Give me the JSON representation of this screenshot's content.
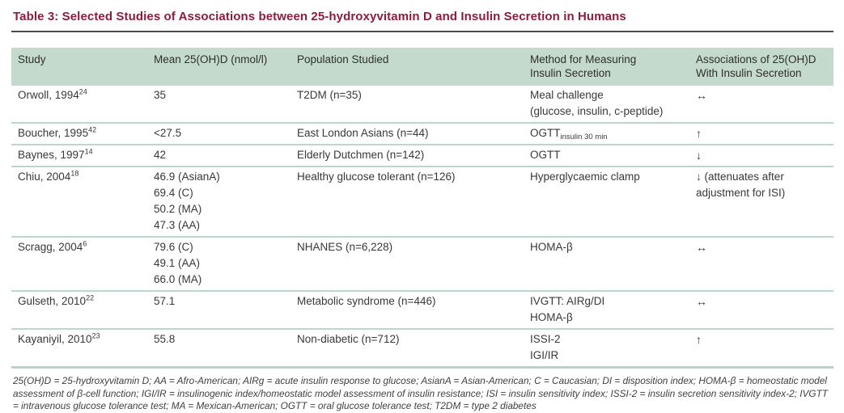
{
  "title": "Table 3: Selected Studies of Associations between 25-hydroxyvitamin D and Insulin Secretion in Humans",
  "colors": {
    "title_text": "#8e1c3e",
    "header_background": "#c4dacc",
    "dark_rule": "#4c4c4c",
    "light_rule": "#bcd7c9",
    "body_text": "#383838"
  },
  "columns": {
    "study": "Study",
    "mean": "Mean 25(OH)D (nmol/l)",
    "population": "Population Studied",
    "method_line1": "Method for Measuring",
    "method_line2": "Insulin Secretion",
    "assoc_line1": "Associations of 25(OH)D",
    "assoc_line2": "With Insulin Secretion"
  },
  "rows": [
    {
      "study": "Orwoll, 1994",
      "ref": "24",
      "mean": [
        "35"
      ],
      "population": "T2DM (n=35)",
      "method": [
        "Meal challenge",
        "(glucose, insulin, c-peptide)"
      ],
      "assoc": "↔"
    },
    {
      "study": "Boucher, 1995",
      "ref": "42",
      "mean": [
        "<27.5"
      ],
      "population": "East London Asians (n=44)",
      "method_main": "OGTT",
      "method_sub": "insulin 30 min",
      "assoc": "↑"
    },
    {
      "study": "Baynes, 1997",
      "ref": "14",
      "mean": [
        "42"
      ],
      "population": "Elderly Dutchmen (n=142)",
      "method": [
        "OGTT"
      ],
      "assoc": "↓"
    },
    {
      "study": "Chiu, 2004",
      "ref": "18",
      "mean": [
        "46.9 (AsianA)",
        "69.4 (C)",
        "50.2 (MA)",
        "47.3 (AA)"
      ],
      "population": "Healthy glucose tolerant (n=126)",
      "method": [
        "Hyperglycaemic clamp"
      ],
      "assoc": "↓ (attenuates after adjustment for ISI)"
    },
    {
      "study": "Scragg, 2004",
      "ref": "6",
      "mean": [
        "79.6 (C)",
        "49.1 (AA)",
        "66.0 (MA)"
      ],
      "population": "NHANES (n=6,228)",
      "method": [
        "HOMA-β"
      ],
      "assoc": "↔"
    },
    {
      "study": "Gulseth, 2010",
      "ref": "22",
      "mean": [
        "57.1"
      ],
      "population": "Metabolic syndrome (n=446)",
      "method": [
        "IVGTT: AIRg/DI",
        "HOMA-β"
      ],
      "assoc": "↔"
    },
    {
      "study": "Kayaniyil, 2010",
      "ref": "23",
      "mean": [
        "55.8"
      ],
      "population": "Non-diabetic (n=712)",
      "method": [
        "ISSI-2",
        "IGI/IR"
      ],
      "assoc": "↑"
    }
  ],
  "footnote": "25(OH)D = 25-hydroxyvitamin D; AA = Afro-American; AIRg = acute insulin response to glucose; AsianA = Asian-American; C = Caucasian; DI = disposition index; HOMA-β = homeostatic model assessment of β-cell function; IGI/IR = insulinogenic index/homeostatic model assessment of insulin resistance; ISI = insulin sensitivity index; ISSI-2 = insulin secretion sensitivity index-2; IVGTT = intravenous glucose tolerance test; MA = Mexican-American; OGTT = oral glucose tolerance test; T2DM = type 2 diabetes"
}
